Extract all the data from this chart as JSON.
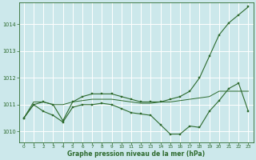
{
  "background_color": "#cce8eb",
  "grid_color": "#ffffff",
  "line_color": "#2d6a2d",
  "xlabel": "Graphe pression niveau de la mer (hPa)",
  "xlim": [
    -0.5,
    23.5
  ],
  "ylim": [
    1009.6,
    1014.8
  ],
  "yticks": [
    1010,
    1011,
    1012,
    1013,
    1014
  ],
  "xticks": [
    0,
    1,
    2,
    3,
    4,
    5,
    6,
    7,
    8,
    9,
    10,
    11,
    12,
    13,
    14,
    15,
    16,
    17,
    18,
    19,
    20,
    21,
    22,
    23
  ],
  "series1": {
    "x": [
      0,
      1,
      2,
      3,
      4,
      5,
      6,
      7,
      8,
      9,
      10,
      11,
      12,
      13,
      14,
      15,
      16,
      17,
      18,
      19,
      20,
      21,
      22,
      23
    ],
    "y": [
      1010.5,
      1011.1,
      1011.1,
      1011.0,
      1011.0,
      1011.1,
      1011.15,
      1011.2,
      1011.2,
      1011.2,
      1011.15,
      1011.1,
      1011.05,
      1011.05,
      1011.1,
      1011.1,
      1011.15,
      1011.2,
      1011.25,
      1011.3,
      1011.5,
      1011.5,
      1011.5,
      1011.5
    ]
  },
  "series2": {
    "x": [
      0,
      1,
      2,
      3,
      4,
      5,
      6,
      7,
      8,
      9,
      10,
      11,
      12,
      13,
      14,
      15,
      16,
      17,
      18,
      19,
      20,
      21,
      22,
      23
    ],
    "y": [
      1010.5,
      1011.0,
      1011.1,
      1011.0,
      1010.4,
      1011.1,
      1011.3,
      1011.4,
      1011.4,
      1011.4,
      1011.3,
      1011.2,
      1011.1,
      1011.1,
      1011.1,
      1011.2,
      1011.3,
      1011.5,
      1012.0,
      1012.8,
      1013.6,
      1014.05,
      1014.35,
      1014.65
    ]
  },
  "series3": {
    "x": [
      0,
      1,
      2,
      3,
      4,
      5,
      6,
      7,
      8,
      9,
      10,
      11,
      12,
      13,
      14,
      15,
      16,
      17,
      18,
      19,
      20,
      21,
      22,
      23
    ],
    "y": [
      1010.5,
      1011.0,
      1010.75,
      1010.6,
      1010.35,
      1010.9,
      1011.0,
      1011.0,
      1011.05,
      1011.0,
      1010.85,
      1010.7,
      1010.65,
      1010.6,
      1010.25,
      1009.9,
      1009.9,
      1010.2,
      1010.15,
      1010.75,
      1011.15,
      1011.6,
      1011.8,
      1010.75
    ]
  }
}
